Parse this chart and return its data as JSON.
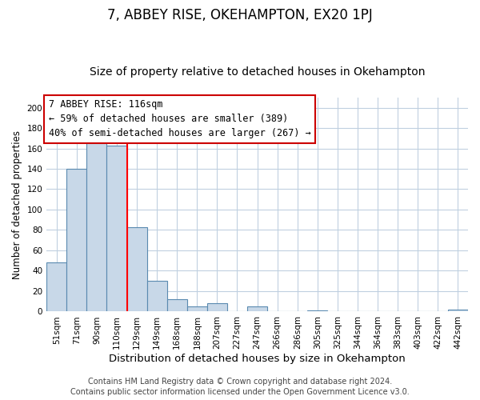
{
  "title": "7, ABBEY RISE, OKEHAMPTON, EX20 1PJ",
  "subtitle": "Size of property relative to detached houses in Okehampton",
  "xlabel": "Distribution of detached houses by size in Okehampton",
  "ylabel": "Number of detached properties",
  "categories": [
    "51sqm",
    "71sqm",
    "90sqm",
    "110sqm",
    "129sqm",
    "149sqm",
    "168sqm",
    "188sqm",
    "207sqm",
    "227sqm",
    "247sqm",
    "266sqm",
    "286sqm",
    "305sqm",
    "325sqm",
    "344sqm",
    "364sqm",
    "383sqm",
    "403sqm",
    "422sqm",
    "442sqm"
  ],
  "values": [
    48,
    140,
    167,
    163,
    83,
    30,
    12,
    5,
    8,
    0,
    5,
    0,
    0,
    1,
    0,
    0,
    0,
    0,
    0,
    0,
    2
  ],
  "bar_color": "#c8d8e8",
  "bar_edge_color": "#5a8ab0",
  "red_line_x": 3.5,
  "ann_line1": "7 ABBEY RISE: 116sqm",
  "ann_line2": "← 59% of detached houses are smaller (389)",
  "ann_line3": "40% of semi-detached houses are larger (267) →",
  "annotation_box_color": "#ffffff",
  "annotation_box_edge": "#cc0000",
  "ylim": [
    0,
    210
  ],
  "yticks": [
    0,
    20,
    40,
    60,
    80,
    100,
    120,
    140,
    160,
    180,
    200
  ],
  "footer_line1": "Contains HM Land Registry data © Crown copyright and database right 2024.",
  "footer_line2": "Contains public sector information licensed under the Open Government Licence v3.0.",
  "background_color": "#ffffff",
  "grid_color": "#c0d0e0",
  "title_fontsize": 12,
  "subtitle_fontsize": 10,
  "xlabel_fontsize": 9.5,
  "ylabel_fontsize": 8.5,
  "tick_fontsize": 7.5,
  "annotation_fontsize": 8.5,
  "footer_fontsize": 7
}
